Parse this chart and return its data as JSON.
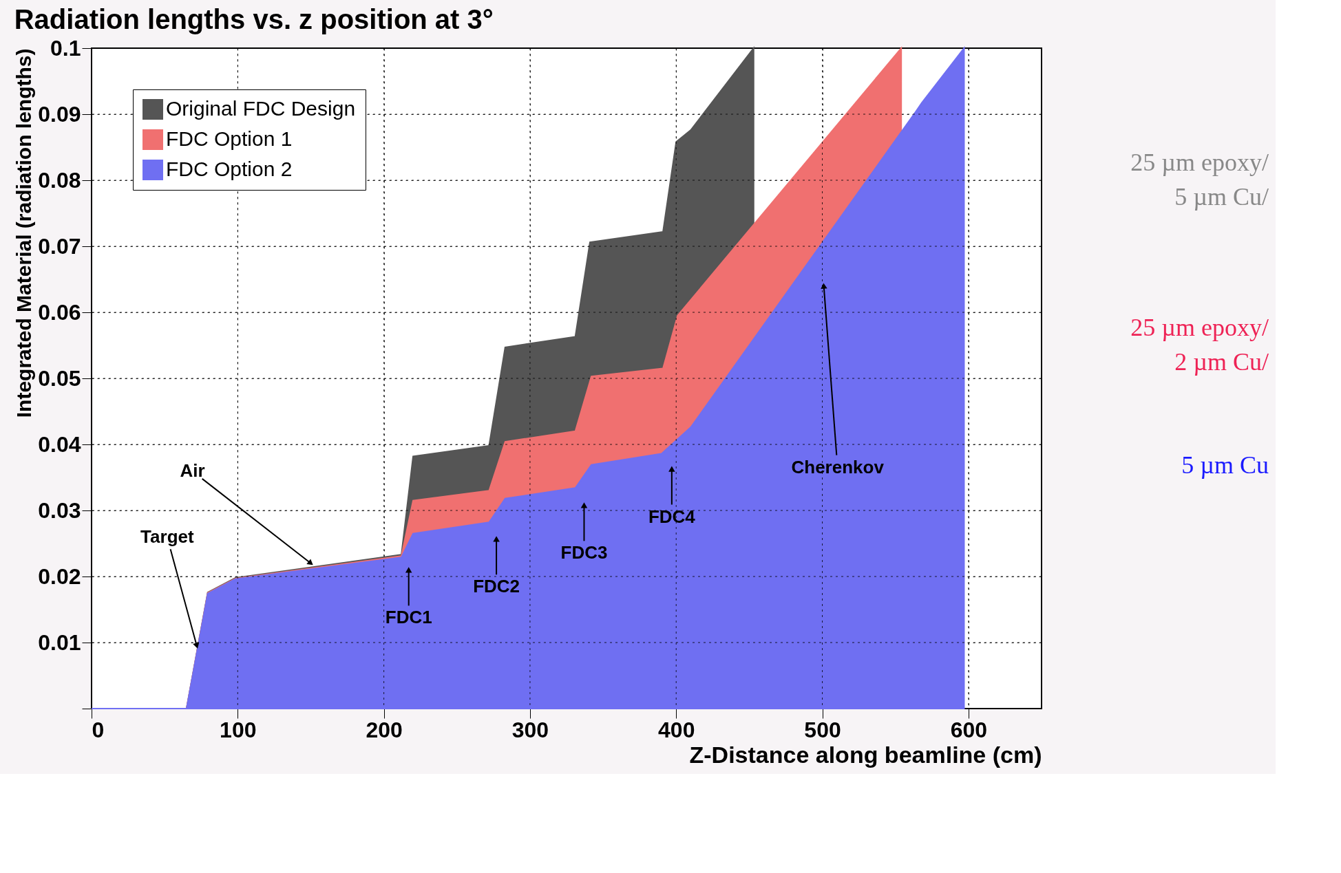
{
  "chart_data": {
    "type": "area",
    "title": "Radiation lengths vs. z position at 3°",
    "xlabel": "Z-Distance along beamline (cm)",
    "ylabel": "Integrated Material (radiation lengths)",
    "series": [
      {
        "name": "Original FDC Design",
        "color": "#555555",
        "x": [
          0,
          65,
          79.5,
          98.5,
          212,
          220,
          272,
          283,
          331,
          341,
          391,
          400,
          410,
          453
        ],
        "values": [
          0,
          0,
          0.0176,
          0.0198,
          0.0233,
          0.0382,
          0.0398,
          0.0547,
          0.0563,
          0.0706,
          0.0722,
          0.0858,
          0.0876,
          0.1
        ]
      },
      {
        "name": "FDC Option 1",
        "color": "#f07070",
        "x": [
          0,
          65,
          79.5,
          98.5,
          212,
          220,
          272,
          283,
          331,
          342,
          391,
          401,
          554
        ],
        "values": [
          0,
          0,
          0.0175,
          0.0197,
          0.0231,
          0.0315,
          0.033,
          0.0404,
          0.042,
          0.0503,
          0.0515,
          0.0595,
          0.1
        ]
      },
      {
        "name": "FDC Option 2",
        "color": "#6f6ff2",
        "x": [
          0,
          65,
          79.5,
          98.5,
          212,
          220,
          272,
          283,
          331,
          342,
          390,
          410,
          564,
          568,
          597
        ],
        "values": [
          0,
          0,
          0.0174,
          0.0196,
          0.0229,
          0.0265,
          0.0282,
          0.0318,
          0.0334,
          0.0369,
          0.0386,
          0.0426,
          0.0904,
          0.0917,
          0.1
        ]
      }
    ],
    "xlim": [
      0,
      650
    ],
    "ylim": [
      0,
      0.1
    ],
    "xticks": [
      0,
      100,
      200,
      300,
      400,
      500,
      600
    ],
    "yticks": [
      {
        "value": 0,
        "label": null
      },
      0.01,
      0.02,
      0.03,
      0.04,
      0.05,
      0.06,
      0.07,
      0.08,
      0.09,
      0.1
    ],
    "grid": true,
    "legend": "top left",
    "annotations": [
      {
        "text": "Target",
        "x": 72,
        "y": 0.0095
      },
      {
        "text": "Air",
        "x": 150,
        "y": 0.022
      },
      {
        "text": "FDC1",
        "x": 217,
        "y": 0.021
      },
      {
        "text": "FDC2",
        "x": 277,
        "y": 0.0257
      },
      {
        "text": "FDC3",
        "x": 337,
        "y": 0.0308
      },
      {
        "text": "FDC4",
        "x": 397,
        "y": 0.0363
      },
      {
        "text": "Cherenkov",
        "x": 501,
        "y": 0.064
      },
      "25 µm epoxy/\n5 µm Cu/",
      "25 µm epoxy/\n2 µm Cu/",
      "5 µm Cu"
    ]
  }
}
